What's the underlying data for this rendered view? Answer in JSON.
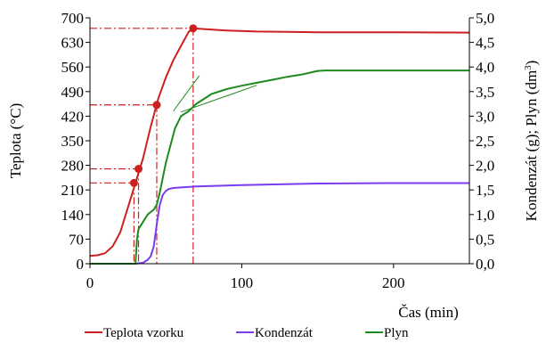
{
  "chart_data": {
    "type": "line",
    "xlabel": "Čas (min)",
    "ylabel_left": "Teplota (°C)",
    "ylabel_right_parts": [
      "Kondenzát (g); Plyn (dm",
      "3",
      ")"
    ],
    "xlim": [
      0,
      250
    ],
    "ylim_left": [
      0,
      700
    ],
    "ylim_right": [
      0,
      5
    ],
    "x_ticks": [
      0,
      100,
      200
    ],
    "x_tick_labels": [
      "0",
      "100",
      "200"
    ],
    "y_left_ticks": [
      0,
      70,
      140,
      210,
      280,
      350,
      420,
      490,
      560,
      630,
      700
    ],
    "y_left_tick_labels": [
      "0",
      "70",
      "140",
      "210",
      "280",
      "350",
      "420",
      "490",
      "560",
      "630",
      "700"
    ],
    "y_right_ticks": [
      0,
      0.5,
      1,
      1.5,
      2,
      2.5,
      3,
      3.5,
      4,
      4.5,
      5
    ],
    "y_right_tick_labels": [
      "0,0",
      "0,5",
      "1,0",
      "1,5",
      "2,0",
      "2,5",
      "3,0",
      "3,5",
      "4,0",
      "4,5",
      "5,0"
    ],
    "grid": false,
    "legend_position": "bottom",
    "series": [
      {
        "name": "Teplota vzorku",
        "color": "#cc1f1f",
        "axis": "left",
        "x": [
          0,
          5,
          10,
          15,
          20,
          25,
          30,
          35,
          40,
          45,
          50,
          55,
          60,
          65,
          68,
          75,
          90,
          110,
          130,
          150,
          200,
          250
        ],
        "y": [
          22,
          24,
          30,
          50,
          90,
          160,
          230,
          300,
          390,
          470,
          530,
          580,
          620,
          660,
          670,
          668,
          664,
          661,
          660,
          659,
          659,
          658
        ]
      },
      {
        "name": "Kondenzát",
        "color": "#7a3cf0",
        "axis": "right",
        "x": [
          0,
          30,
          35,
          38,
          40,
          42,
          44,
          46,
          48,
          50,
          52,
          55,
          60,
          70,
          80,
          100,
          150,
          200,
          250
        ],
        "y": [
          0,
          0,
          0.02,
          0.08,
          0.15,
          0.35,
          0.8,
          1.2,
          1.4,
          1.48,
          1.52,
          1.54,
          1.55,
          1.57,
          1.58,
          1.6,
          1.63,
          1.64,
          1.64
        ]
      },
      {
        "name": "Plyn",
        "color": "#1f8a1f",
        "axis": "right",
        "x": [
          0,
          30,
          31,
          32,
          34,
          36,
          38,
          40,
          42,
          44,
          46,
          48,
          50,
          53,
          56,
          60,
          65,
          70,
          75,
          80,
          90,
          100,
          110,
          120,
          130,
          140,
          150,
          155,
          200,
          250
        ],
        "y": [
          0,
          0,
          0.5,
          0.7,
          0.8,
          0.9,
          1.0,
          1.05,
          1.1,
          1.2,
          1.45,
          1.75,
          2.05,
          2.4,
          2.75,
          3.0,
          3.1,
          3.25,
          3.35,
          3.45,
          3.55,
          3.62,
          3.68,
          3.74,
          3.8,
          3.85,
          3.92,
          3.93,
          3.93,
          3.93
        ]
      }
    ],
    "reference_lines": [
      {
        "x": 29,
        "y_left": 230,
        "color": "#cc1f1f"
      },
      {
        "x": 32,
        "y_left": 270,
        "color": "#cc1f1f"
      },
      {
        "x": 44,
        "y_left": 452,
        "color": "#cc1f1f"
      },
      {
        "x": 68,
        "y_left": 670,
        "color": "#cc1f1f"
      }
    ],
    "tangents": [
      {
        "from": [
          55,
          435
        ],
        "to": [
          72,
          535
        ],
        "color": "#1f8a1f"
      },
      {
        "from": [
          60,
          432
        ],
        "to": [
          110,
          508
        ],
        "color": "#1f8a1f"
      }
    ]
  }
}
